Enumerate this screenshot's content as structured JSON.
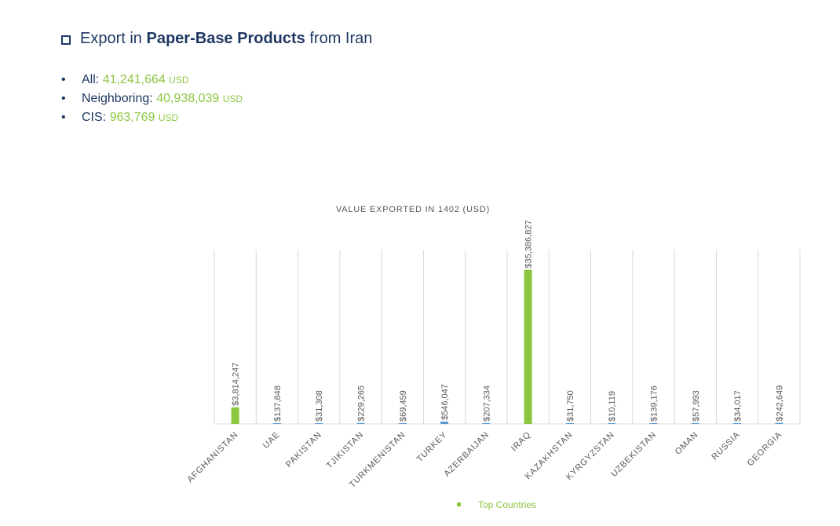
{
  "heading": {
    "prefix": "Export in",
    "product": "Paper-Base Products",
    "suffix": "from Iran"
  },
  "summary": [
    {
      "label": "All:",
      "value": "41,241,664",
      "unit": "USD"
    },
    {
      "label": "Neighboring:",
      "value": "40,938,039",
      "unit": "USD"
    },
    {
      "label": "CIS:",
      "value": "963,769",
      "unit": "USD"
    }
  ],
  "colors": {
    "heading": "#1f3864",
    "highlight": "#8cc63f",
    "blue_bar": "#5b9bd5",
    "label": "#595959",
    "grid": "#d9d9d9"
  },
  "chart_data": {
    "type": "bar",
    "title": "VALUE EXPORTED IN 1402 (USD)",
    "categories": [
      "AFGHANISTAN",
      "UAE",
      "PAKISTAN",
      "TJIKISTAN",
      "TURKMENISTAN",
      "TURKEY",
      "AZERBAIJAN",
      "IRAQ",
      "KAZAKHSTAN",
      "KYRGYZSTAN",
      "UZBEKISTAN",
      "OMAN",
      "RUSSIA",
      "GEORGIA"
    ],
    "values": [
      3814247,
      137848,
      31308,
      229265,
      69459,
      546047,
      207334,
      35386827,
      31750,
      10119,
      139176,
      57993,
      34017,
      242649
    ],
    "data_labels": [
      "$3,814,247",
      "$137,848",
      "$31,308",
      "$229,265",
      "$69,459",
      "$546,047",
      "$207,334",
      "$35,386,827",
      "$31,750",
      "$10,119",
      "$139,176",
      "$57,993",
      "$34,017",
      "$242,649"
    ],
    "highlighted": [
      true,
      false,
      false,
      false,
      false,
      false,
      false,
      true,
      false,
      false,
      false,
      false,
      false,
      false
    ],
    "ylim": [
      0,
      40000000
    ],
    "legend": {
      "label": "Top Countries",
      "position": "bottom"
    },
    "grid": "vertical"
  }
}
